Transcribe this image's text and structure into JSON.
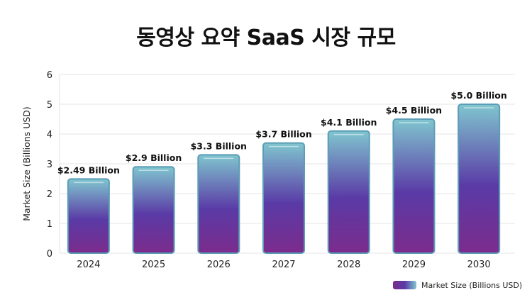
{
  "chart_data": {
    "type": "bar",
    "title": "동영상 요약 SaaS 시장 규모",
    "xlabel": "",
    "ylabel": "Market Size (Billions USD)",
    "categories": [
      "2024",
      "2025",
      "2026",
      "2027",
      "2028",
      "2029",
      "2030"
    ],
    "series": [
      {
        "name": "Market Size (Billions USD)",
        "values": [
          2.49,
          2.9,
          3.3,
          3.7,
          4.1,
          4.5,
          5.0
        ]
      }
    ],
    "data_labels": [
      "$2.49 Billion",
      "$2.9 Billion",
      "$3.3 Billion",
      "$3.7 Billion",
      "$4.1 Billion",
      "$4.5 Billion",
      "$5.0 Billion"
    ],
    "ylim": [
      0,
      6
    ],
    "yticks": [
      0,
      1,
      2,
      3,
      4,
      5,
      6
    ],
    "grid": true,
    "legend_position": "bottom-right",
    "colors": {
      "gradient_top": "#80c6cf",
      "gradient_mid": "#5a3aa6",
      "gradient_bottom": "#7c2c8c",
      "border": "#5b9db6"
    }
  }
}
